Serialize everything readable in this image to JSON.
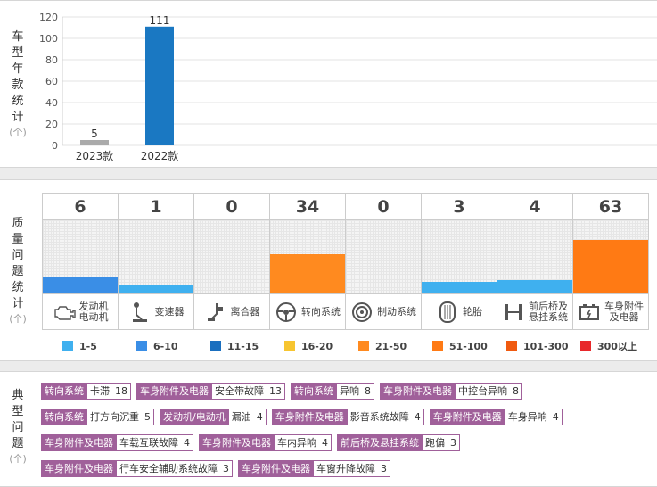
{
  "year_panel": {
    "label": "车型年款统计",
    "unit": "(个)"
  },
  "quality_panel": {
    "label": "质量问题统计",
    "unit": "(个)",
    "columns": [
      {
        "value": "6",
        "name": "发动机\n电动机",
        "icon": "engine-icon",
        "level": 6,
        "color": "#3a8ee6"
      },
      {
        "value": "1",
        "name": "变速器",
        "icon": "gear-shifter-icon",
        "level": 1,
        "color": "#3fb0ef"
      },
      {
        "value": "0",
        "name": "离合器",
        "icon": "clutch-pedal-icon",
        "level": 0,
        "color": ""
      },
      {
        "value": "34",
        "name": "转向系统",
        "icon": "steering-wheel-icon",
        "level": 34,
        "color": "#ff8a1f"
      },
      {
        "value": "0",
        "name": "制动系统",
        "icon": "brake-disc-icon",
        "level": 0,
        "color": ""
      },
      {
        "value": "3",
        "name": "轮胎",
        "icon": "tire-icon",
        "level": 3,
        "color": "#3fb0ef"
      },
      {
        "value": "4",
        "name": "前后桥及\n悬挂系统",
        "icon": "axle-icon",
        "level": 4,
        "color": "#3fb0ef"
      },
      {
        "value": "63",
        "name": "车身附件\n及电器",
        "icon": "battery-icon",
        "level": 63,
        "color": "#ff7a14"
      }
    ],
    "legend": [
      {
        "label": "1-5",
        "color": "#3fb0ef"
      },
      {
        "label": "6-10",
        "color": "#3a8ee6"
      },
      {
        "label": "11-15",
        "color": "#1a6fbf"
      },
      {
        "label": "16-20",
        "color": "#f7c530"
      },
      {
        "label": "21-50",
        "color": "#ff8a1f"
      },
      {
        "label": "51-100",
        "color": "#ff7a14"
      },
      {
        "label": "101-300",
        "color": "#f05a10"
      },
      {
        "label": "300以上",
        "color": "#e8282b"
      }
    ]
  },
  "typical_panel": {
    "label": "典型问题",
    "unit": "(个)",
    "rows": [
      [
        {
          "category": "转向系统",
          "issue": "卡滞",
          "count": "18"
        },
        {
          "category": "车身附件及电器",
          "issue": "安全带故障",
          "count": "13"
        },
        {
          "category": "转向系统",
          "issue": "异响",
          "count": "8"
        },
        {
          "category": "车身附件及电器",
          "issue": "中控台异响",
          "count": "8"
        }
      ],
      [
        {
          "category": "转向系统",
          "issue": "打方向沉重",
          "count": "5"
        },
        {
          "category": "发动机/电动机",
          "issue": "漏油",
          "count": "4"
        },
        {
          "category": "车身附件及电器",
          "issue": "影音系统故障",
          "count": "4"
        },
        {
          "category": "车身附件及电器",
          "issue": "车身异响",
          "count": "4"
        }
      ],
      [
        {
          "category": "车身附件及电器",
          "issue": "车载互联故障",
          "count": "4"
        },
        {
          "category": "车身附件及电器",
          "issue": "车内异响",
          "count": "4"
        },
        {
          "category": "前后桥及悬挂系统",
          "issue": "跑偏",
          "count": "3"
        }
      ],
      [
        {
          "category": "车身附件及电器",
          "issue": "行车安全辅助系统故障",
          "count": "3"
        },
        {
          "category": "车身附件及电器",
          "issue": "车窗升降故障",
          "count": "3"
        }
      ]
    ]
  },
  "chart_data": {
    "type": "bar",
    "title": "车型年款统计",
    "ylabel": "(个)",
    "categories": [
      "2023款",
      "2022款"
    ],
    "values": [
      5,
      111
    ],
    "value_labels": [
      "5",
      "111"
    ],
    "colors": [
      "#aaaaaa",
      "#1a78c2"
    ],
    "yticks": [
      "0",
      "20",
      "40",
      "60",
      "80",
      "100",
      "120"
    ],
    "ytick_values": [
      0,
      20,
      40,
      60,
      80,
      100,
      120
    ],
    "ylim": [
      0,
      120
    ],
    "grid": true
  }
}
